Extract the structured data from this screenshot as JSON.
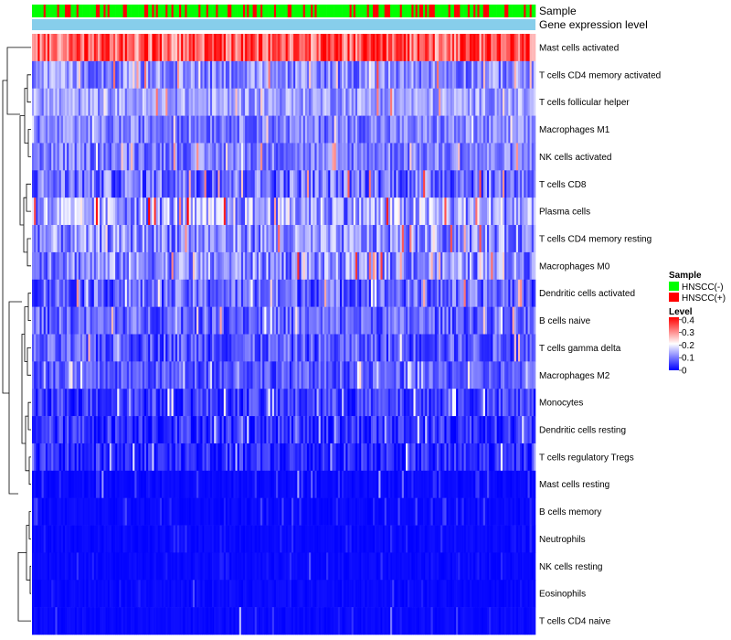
{
  "chart_data": {
    "type": "heatmap",
    "title": "",
    "num_samples": 260,
    "annotation_tracks": [
      {
        "name": "Sample",
        "label": "Sample",
        "type": "categorical"
      },
      {
        "name": "gene-expression",
        "label": "Gene expression level",
        "type": "bar",
        "color": "#87CEEB"
      }
    ],
    "rows": [
      {
        "label": "Mast cells activated",
        "level": 0.33,
        "spread": 0.1
      },
      {
        "label": "T cells CD4 memory activated",
        "level": 0.1,
        "spread": 0.07
      },
      {
        "label": "T cells follicular helper",
        "level": 0.12,
        "spread": 0.06
      },
      {
        "label": "Macrophages M1",
        "level": 0.09,
        "spread": 0.06
      },
      {
        "label": "NK cells activated",
        "level": 0.09,
        "spread": 0.06
      },
      {
        "label": "T cells CD8",
        "level": 0.08,
        "spread": 0.08
      },
      {
        "label": "Plasma cells",
        "level": 0.12,
        "spread": 0.1
      },
      {
        "label": "T cells CD4 memory resting",
        "level": 0.1,
        "spread": 0.08
      },
      {
        "label": "Macrophages M0",
        "level": 0.1,
        "spread": 0.08
      },
      {
        "label": "Dendritic cells activated",
        "level": 0.07,
        "spread": 0.07
      },
      {
        "label": "B cells naive",
        "level": 0.07,
        "spread": 0.06
      },
      {
        "label": "T cells gamma delta",
        "level": 0.06,
        "spread": 0.06
      },
      {
        "label": "Macrophages M2",
        "level": 0.06,
        "spread": 0.05
      },
      {
        "label": "Monocytes",
        "level": 0.04,
        "spread": 0.05
      },
      {
        "label": "Dendritic cells resting",
        "level": 0.03,
        "spread": 0.05
      },
      {
        "label": "T cells regulatory  Tregs",
        "level": 0.02,
        "spread": 0.05
      },
      {
        "label": "Mast cells resting",
        "level": 0.01,
        "spread": 0.04
      },
      {
        "label": "B cells memory",
        "level": 0.01,
        "spread": 0.04
      },
      {
        "label": "Neutrophils",
        "level": 0.005,
        "spread": 0.03
      },
      {
        "label": "NK cells resting",
        "level": 0.005,
        "spread": 0.03
      },
      {
        "label": "Eosinophils",
        "level": 0.003,
        "spread": 0.02
      },
      {
        "label": "T cells CD4 naive",
        "level": 0.01,
        "spread": 0.04
      }
    ],
    "legend": {
      "sample": {
        "title": "Sample",
        "items": [
          {
            "label": "HNSCC(-)",
            "color": "#00FF00"
          },
          {
            "label": "HNSCC(+)",
            "color": "#FF0000"
          }
        ]
      },
      "level": {
        "title": "Level",
        "ticks": [
          "0.4",
          "0.3",
          "0.2",
          "0.1",
          "0"
        ],
        "tick_values": [
          0.4,
          0.3,
          0.2,
          0.1,
          0
        ],
        "range": [
          0,
          0.42
        ]
      }
    },
    "colors": {
      "low": "#0000FF",
      "mid": "#FFFFFF",
      "high": "#FF0000",
      "negative": "#00FF00",
      "positive": "#FF0000",
      "dendrogram": "#000000"
    }
  }
}
